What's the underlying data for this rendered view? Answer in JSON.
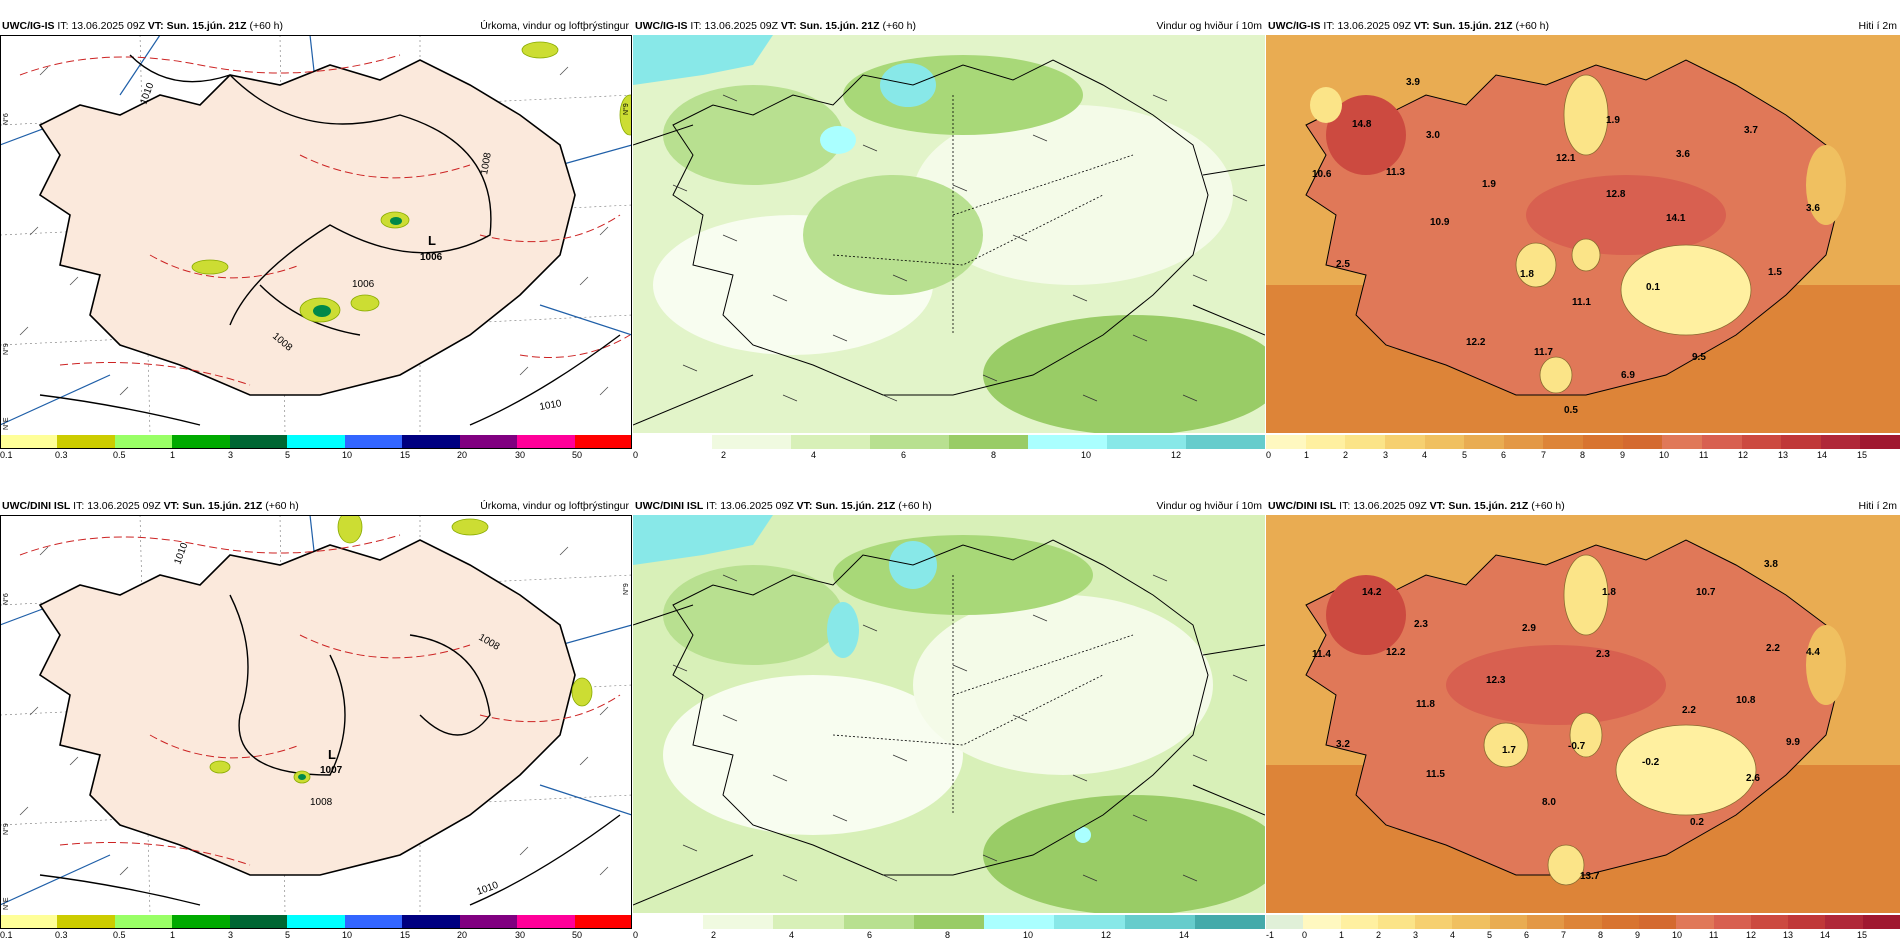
{
  "panels": {
    "p1": {
      "model": "UWC/IG-IS",
      "it_label": "IT:",
      "it_value": "13.06.2025 09Z",
      "vt_label": "VT:",
      "vt_value": "Sun. 15.jún. 21Z",
      "lead": "(+60 h)",
      "title": "Úrkoma, vindur og loftþrýstingur",
      "low_letter": "L",
      "low_value": "1006",
      "isobars": [
        "1010",
        "1008",
        "1006",
        "1008",
        "1010"
      ],
      "lat_labels": [
        "N°6",
        "N°9",
        "N°9",
        "N°E"
      ],
      "colorbar_ticks": [
        "0.1",
        "0.3",
        "0.5",
        "1",
        "3",
        "5",
        "10",
        "15",
        "20",
        "30",
        "50"
      ],
      "colors": [
        "#ffff99",
        "#cccc00",
        "#99ff66",
        "#00aa00",
        "#006633",
        "#00ffff",
        "#3366ff",
        "#000080",
        "#800080",
        "#ff0099",
        "#ff0000"
      ]
    },
    "p2": {
      "model": "UWC/IG-IS",
      "it_label": "IT:",
      "it_value": "13.06.2025 09Z",
      "vt_label": "VT:",
      "vt_value": "Sun. 15.jún. 21Z",
      "lead": "(+60 h)",
      "title": "Vindur og hviður í 10m",
      "colorbar_ticks": [
        "0",
        "2",
        "4",
        "6",
        "8",
        "10",
        "12"
      ],
      "colors": [
        "#ffffff",
        "#f0fae0",
        "#d8f0b8",
        "#b8e090",
        "#99cc66",
        "#aaffff",
        "#88e8e8",
        "#66cccc"
      ]
    },
    "p3": {
      "model": "UWC/IG-IS",
      "it_label": "IT:",
      "it_value": "13.06.2025 09Z",
      "vt_label": "VT:",
      "vt_value": "Sun. 15.jún. 21Z",
      "lead": "(+60 h)",
      "title": "Hiti í 2m",
      "temps": [
        "3.9",
        "14.8",
        "3.0",
        "10.6",
        "11.3",
        "1.9",
        "12.1",
        "1.9",
        "3.6",
        "3.7",
        "12.8",
        "3.6",
        "10.9",
        "14.1",
        "2.5",
        "1.8",
        "0.1",
        "1.5",
        "11.1",
        "12.2",
        "11.7",
        "9.5",
        "6.9",
        "0.5"
      ],
      "colorbar_ticks": [
        "0",
        "1",
        "2",
        "3",
        "4",
        "5",
        "6",
        "7",
        "8",
        "9",
        "10",
        "11",
        "12",
        "13",
        "14",
        "15"
      ],
      "colors": [
        "#fff8c0",
        "#fff0a0",
        "#fbe488",
        "#f6d070",
        "#f0c060",
        "#e9ac52",
        "#e39846",
        "#dd8438",
        "#d87430",
        "#d46a30",
        "#e07858",
        "#d86050",
        "#cc4a40",
        "#c03838",
        "#b02838",
        "#a01830"
      ]
    },
    "p4": {
      "model": "UWC/DINI ISL",
      "it_label": "IT:",
      "it_value": "13.06.2025 09Z",
      "vt_label": "VT:",
      "vt_value": "Sun. 15.jún. 21Z",
      "lead": "(+60 h)",
      "title": "Úrkoma, vindur og loftþrýstingur",
      "low_letter": "L",
      "low_value": "1007",
      "isobars": [
        "1010",
        "1008",
        "1008",
        "1010"
      ],
      "lat_labels": [
        "N°6",
        "N°9",
        "N°9",
        "N°E"
      ],
      "colorbar_ticks": [
        "0.1",
        "0.3",
        "0.5",
        "1",
        "3",
        "5",
        "10",
        "15",
        "20",
        "30",
        "50"
      ],
      "colors": [
        "#ffff99",
        "#cccc00",
        "#99ff66",
        "#00aa00",
        "#006633",
        "#00ffff",
        "#3366ff",
        "#000080",
        "#800080",
        "#ff0099",
        "#ff0000"
      ]
    },
    "p5": {
      "model": "UWC/DINI ISL",
      "it_label": "IT:",
      "it_value": "13.06.2025 09Z",
      "vt_label": "VT:",
      "vt_value": "Sun. 15.jún. 21Z",
      "lead": "(+60 h)",
      "title": "Vindur og hviður í 10m",
      "colorbar_ticks": [
        "0",
        "2",
        "4",
        "6",
        "8",
        "10",
        "12",
        "14"
      ],
      "colors": [
        "#ffffff",
        "#f0fae0",
        "#d8f0b8",
        "#b8e090",
        "#99cc66",
        "#aaffff",
        "#88e8e8",
        "#66cccc",
        "#44aaaa"
      ]
    },
    "p6": {
      "model": "UWC/DINI ISL",
      "it_label": "IT:",
      "it_value": "13.06.2025 09Z",
      "vt_label": "VT:",
      "vt_value": "Sun. 15.jún. 21Z",
      "lead": "(+60 h)",
      "title": "Hiti í 2m",
      "temps": [
        "3.8",
        "14.2",
        "1.8",
        "10.7",
        "2.3",
        "2.9",
        "11.4",
        "12.2",
        "2.3",
        "2.2",
        "4.4",
        "12.3",
        "11.8",
        "2.2",
        "10.8",
        "3.2",
        "1.7",
        "-0.7",
        "-0.2",
        "9.9",
        "11.5",
        "2.6",
        "8.0",
        "0.2",
        "13.7"
      ],
      "colorbar_ticks": [
        "-1",
        "0",
        "1",
        "2",
        "3",
        "4",
        "5",
        "6",
        "7",
        "8",
        "9",
        "10",
        "11",
        "12",
        "13",
        "14",
        "15"
      ],
      "colors": [
        "#e0f0d8",
        "#fff8c0",
        "#fff0a0",
        "#fbe488",
        "#f6d070",
        "#f0c060",
        "#e9ac52",
        "#e39846",
        "#dd8438",
        "#d87430",
        "#d46a30",
        "#e07858",
        "#d86050",
        "#cc4a40",
        "#c03838",
        "#b02838",
        "#a01830"
      ]
    }
  }
}
